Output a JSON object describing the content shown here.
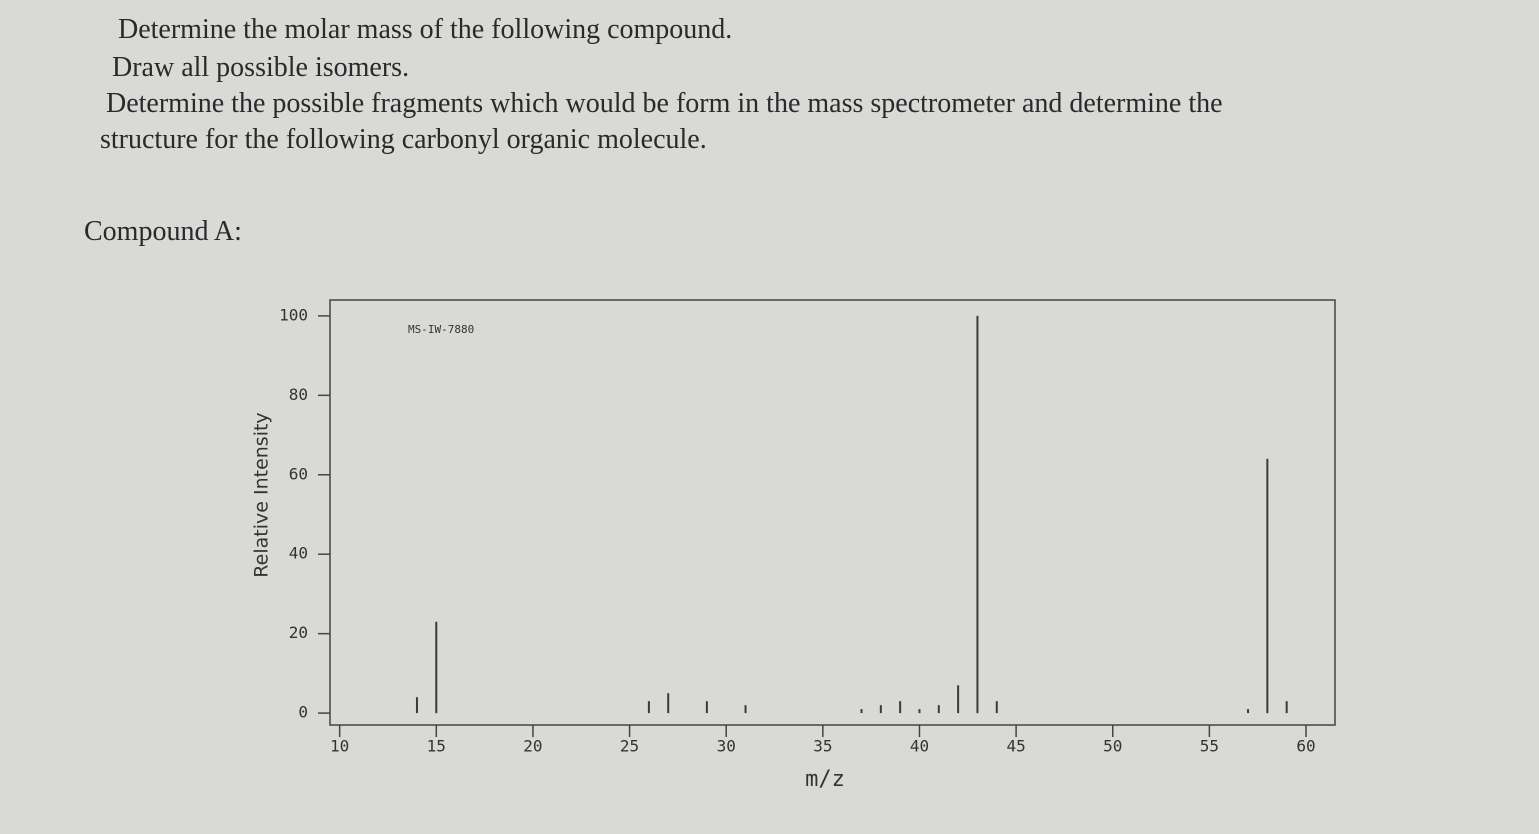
{
  "text": {
    "lines": [
      "Determine the molar mass of the following compound.",
      "Draw all possible isomers.",
      "Determine the possible fragments which would be form in the mass spectrometer and determine the",
      "structure for the following carbonyl organic molecule."
    ],
    "compound_label": "Compound A:"
  },
  "chart_data": {
    "type": "bar",
    "annotation": "MS-IW-7880",
    "xlabel": "m/z",
    "ylabel": "Relative Intensity",
    "x": [
      14,
      15,
      26,
      27,
      29,
      31,
      37,
      38,
      39,
      40,
      41,
      42,
      43,
      44,
      57,
      58,
      59
    ],
    "values": [
      4,
      23,
      3,
      5,
      3,
      2,
      1,
      2,
      3,
      1,
      2,
      7,
      100,
      3,
      1,
      64,
      3
    ],
    "color": "#3a3a3a",
    "xlim": [
      9.5,
      61.5
    ],
    "xticks": [
      10,
      15,
      20,
      25,
      30,
      35,
      40,
      45,
      50,
      55,
      60
    ],
    "ylim": [
      -3,
      104
    ],
    "yticks": [
      0,
      20,
      40,
      60,
      80,
      100
    ]
  }
}
